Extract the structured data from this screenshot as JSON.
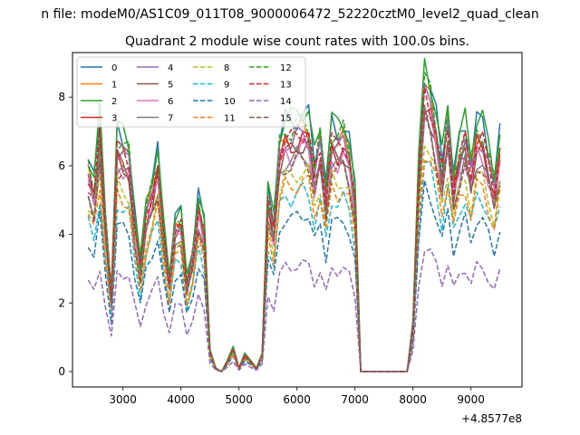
{
  "figure": {
    "suptitle": "n file: modeM0/AS1C09_011T08_9000006472_52220cztM0_level2_quad_clean",
    "title": "Quadrant 2 module wise count rates with 100.0s bins."
  },
  "chart_data": {
    "type": "line",
    "title": "Quadrant 2 module wise count rates with 100.0s bins.",
    "xlabel": "",
    "ylabel": "",
    "x_offset_label": "+4.8577e8",
    "xlim": [
      2130,
      9880
    ],
    "ylim": [
      -0.45,
      9.3
    ],
    "xticks": [
      3000,
      4000,
      5000,
      6000,
      7000,
      8000,
      9000
    ],
    "yticks": [
      0,
      2,
      4,
      6,
      8
    ],
    "grid": false,
    "legend": {
      "placement": "top-left",
      "ncol": 4
    },
    "x": [
      2400,
      2500,
      2600,
      2700,
      2800,
      2900,
      3000,
      3100,
      3200,
      3300,
      3400,
      3500,
      3600,
      3700,
      3800,
      3900,
      4000,
      4100,
      4200,
      4300,
      4400,
      4500,
      4600,
      4700,
      4800,
      4900,
      5000,
      5100,
      5200,
      5300,
      5400,
      5500,
      5600,
      5700,
      5800,
      5900,
      6000,
      6100,
      6200,
      6300,
      6400,
      6500,
      6600,
      6700,
      6800,
      6900,
      7000,
      7100,
      7200,
      7300,
      7400,
      7500,
      7600,
      7700,
      7800,
      7900,
      8000,
      8100,
      8200,
      8300,
      8400,
      8500,
      8600,
      8700,
      8800,
      8900,
      9000,
      9100,
      9200,
      9300,
      9400,
      9500
    ],
    "base_profile": [
      6.0,
      5.4,
      7.1,
      4.4,
      2.3,
      6.8,
      6.6,
      6.4,
      4.5,
      3.1,
      4.7,
      5.4,
      6.2,
      4.1,
      2.7,
      4.4,
      4.5,
      2.6,
      3.4,
      5.0,
      4.2,
      0.6,
      0.1,
      0.0,
      0.3,
      0.7,
      0.1,
      0.5,
      0.3,
      0.1,
      0.5,
      5.1,
      4.3,
      6.6,
      7.1,
      7.0,
      7.2,
      7.3,
      7.2,
      6.0,
      6.8,
      5.3,
      7.0,
      6.8,
      7.0,
      6.5,
      5.1,
      0.0,
      0.0,
      0.0,
      0.0,
      0.0,
      0.0,
      0.0,
      0.0,
      0.0,
      1.4,
      5.9,
      8.5,
      8.1,
      7.2,
      6.0,
      7.4,
      5.6,
      6.5,
      7.0,
      6.0,
      7.1,
      7.0,
      6.3,
      5.5,
      6.7
    ],
    "series": [
      {
        "name": "0",
        "color": "#1f77b4",
        "dashed": false,
        "scale": 1.03
      },
      {
        "name": "1",
        "color": "#ff7f0e",
        "dashed": false,
        "scale": 0.97
      },
      {
        "name": "2",
        "color": "#2ca02c",
        "dashed": false,
        "scale": 1.05
      },
      {
        "name": "3",
        "color": "#d62728",
        "dashed": false,
        "scale": 0.93
      },
      {
        "name": "4",
        "color": "#9467bd",
        "dashed": false,
        "scale": 0.95
      },
      {
        "name": "5",
        "color": "#8c564b",
        "dashed": false,
        "scale": 0.91
      },
      {
        "name": "6",
        "color": "#e377c2",
        "dashed": false,
        "scale": 0.89
      },
      {
        "name": "7",
        "color": "#7f7f7f",
        "dashed": false,
        "scale": 0.87
      },
      {
        "name": "8",
        "color": "#bcbd22",
        "dashed": true,
        "scale": 0.8
      },
      {
        "name": "9",
        "color": "#17becf",
        "dashed": true,
        "scale": 0.72
      },
      {
        "name": "10",
        "color": "#1f77b4",
        "dashed": true,
        "scale": 0.63
      },
      {
        "name": "11",
        "color": "#ff7f0e",
        "dashed": true,
        "scale": 0.76
      },
      {
        "name": "12",
        "color": "#2ca02c",
        "dashed": true,
        "scale": 1.0
      },
      {
        "name": "13",
        "color": "#d62728",
        "dashed": true,
        "scale": 0.96
      },
      {
        "name": "14",
        "color": "#9467bd",
        "dashed": true,
        "scale": 0.43
      },
      {
        "name": "15",
        "color": "#8c564b",
        "dashed": true,
        "scale": 0.85
      }
    ]
  }
}
